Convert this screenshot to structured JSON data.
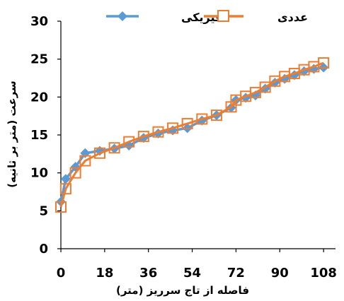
{
  "chart_data": {
    "type": "line",
    "xlabel": "فاصله از تاج سرریز (متر)",
    "ylabel": "سرعت (متر بر ثانیه)",
    "xlim": [
      0,
      110
    ],
    "ylim": [
      0,
      30
    ],
    "x_ticks": [
      "0",
      "18",
      "36",
      "54",
      "72",
      "90",
      "108"
    ],
    "y_ticks": [
      "0",
      "5",
      "10",
      "15",
      "20",
      "25",
      "30"
    ],
    "grid": false,
    "legend_position": "top",
    "series": [
      {
        "name": "فیزیکی",
        "color": "#5B9BD5",
        "marker": "diamond",
        "x": [
          0,
          2,
          6,
          10,
          16,
          22,
          28,
          34,
          40,
          46,
          52,
          58,
          64,
          70,
          72,
          76,
          80,
          84,
          88,
          92,
          96,
          100,
          104,
          108
        ],
        "y": [
          6.2,
          9.2,
          10.8,
          12.6,
          12.9,
          13.2,
          13.6,
          14.6,
          15.2,
          15.6,
          15.9,
          16.9,
          17.6,
          18.6,
          19.6,
          19.9,
          20.2,
          21.1,
          21.9,
          22.4,
          22.9,
          23.4,
          23.7,
          23.9
        ]
      },
      {
        "name": "عددی",
        "color": "#ED7D31",
        "marker": "square",
        "x": [
          0,
          2,
          6,
          10,
          16,
          22,
          28,
          34,
          40,
          46,
          52,
          58,
          64,
          70,
          72,
          76,
          80,
          84,
          88,
          92,
          96,
          100,
          104,
          108
        ],
        "y": [
          5.5,
          7.9,
          10.0,
          11.6,
          12.6,
          13.3,
          14.1,
          14.8,
          15.4,
          15.9,
          16.5,
          17.1,
          17.6,
          18.7,
          19.6,
          20.1,
          20.6,
          21.3,
          22.1,
          22.7,
          23.1,
          23.6,
          24.0,
          24.5
        ]
      }
    ]
  }
}
